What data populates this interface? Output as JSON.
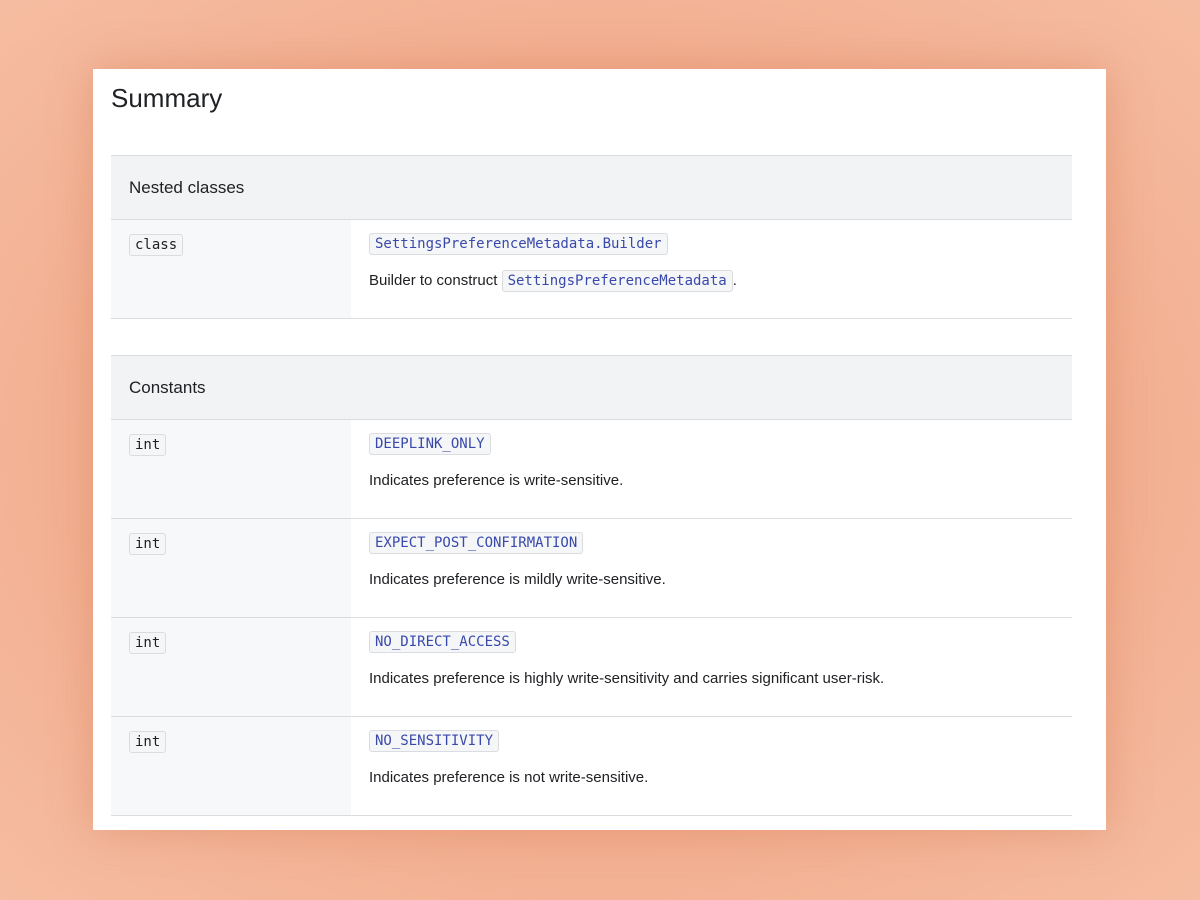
{
  "title": "Summary",
  "nested_classes": {
    "header": "Nested classes",
    "rows": [
      {
        "type": "class",
        "name": "SettingsPreferenceMetadata.Builder",
        "desc_prefix": "Builder to construct ",
        "desc_code": "SettingsPreferenceMetadata",
        "desc_suffix": "."
      }
    ]
  },
  "constants": {
    "header": "Constants",
    "rows": [
      {
        "type": "int",
        "name": "DEEPLINK_ONLY",
        "desc": "Indicates preference is write-sensitive."
      },
      {
        "type": "int",
        "name": "EXPECT_POST_CONFIRMATION",
        "desc": "Indicates preference is mildly write-sensitive."
      },
      {
        "type": "int",
        "name": "NO_DIRECT_ACCESS",
        "desc": "Indicates preference is highly write-sensitivity and carries significant user-risk."
      },
      {
        "type": "int",
        "name": "NO_SENSITIVITY",
        "desc": "Indicates preference is not write-sensitive."
      }
    ]
  }
}
